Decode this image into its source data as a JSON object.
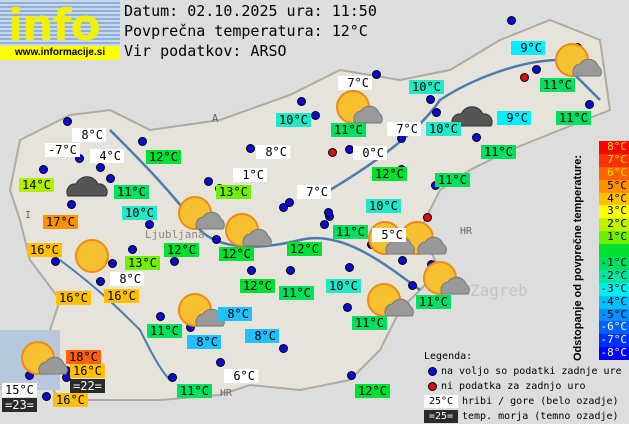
{
  "logo": {
    "word": "info",
    "url": "www.informacije.si"
  },
  "header": {
    "date_line": "Datum: 02.10.2025 ura: 11:50",
    "avg_temp_line": "Povprečna temperatura: 12°C",
    "source_line": "Vir podatkov: ARSO"
  },
  "map_labels": {
    "austria": "A",
    "croatia_1": "HR",
    "croatia_2": "HR",
    "italy": "I",
    "ljubljana": "Ljubljana",
    "zagreb": "Zagreb"
  },
  "colors": {
    "station_available": "#0a0ad8",
    "station_missing": "#d81010",
    "river": "#4a7cb0"
  },
  "stations": [
    {
      "t": "9°C",
      "bg": "#00f0ff"
    },
    {
      "t": "7°C",
      "bg": "#ffffff"
    },
    {
      "t": "10°C",
      "bg": "#20e8c8"
    },
    {
      "t": "11°C",
      "bg": "#00e060"
    },
    {
      "t": "10°C",
      "bg": "#20e8c8"
    },
    {
      "t": "11°C",
      "bg": "#00e060"
    },
    {
      "t": "7°C",
      "bg": "#ffffff"
    },
    {
      "t": "10°C",
      "bg": "#20e8c8"
    },
    {
      "t": "9°C",
      "bg": "#00f0ff"
    },
    {
      "t": "11°C",
      "bg": "#00e060"
    },
    {
      "t": "8°C",
      "bg": "#ffffff"
    },
    {
      "t": "-7°C",
      "bg": "#ffffff"
    },
    {
      "t": "4°C",
      "bg": "#ffffff"
    },
    {
      "t": "12°C",
      "bg": "#00e030"
    },
    {
      "t": "8°C",
      "bg": "#ffffff"
    },
    {
      "t": "0°C",
      "bg": "#ffffff"
    },
    {
      "t": "11°C",
      "bg": "#00e060"
    },
    {
      "t": "12°C",
      "bg": "#00e030"
    },
    {
      "t": "14°C",
      "bg": "#b0f000"
    },
    {
      "t": "1°C",
      "bg": "#ffffff"
    },
    {
      "t": "11°C",
      "bg": "#00e060"
    },
    {
      "t": "13°C",
      "bg": "#70f000"
    },
    {
      "t": "7°C",
      "bg": "#ffffff"
    },
    {
      "t": "11°C",
      "bg": "#00e060"
    },
    {
      "t": "10°C",
      "bg": "#20e8c8"
    },
    {
      "t": "10°C",
      "bg": "#20e8c8"
    },
    {
      "t": "17°C",
      "bg": "#ff9000"
    },
    {
      "t": "11°C",
      "bg": "#00e060"
    },
    {
      "t": "5°C",
      "bg": "#ffffff"
    },
    {
      "t": "16°C",
      "bg": "#ffc000"
    },
    {
      "t": "12°C",
      "bg": "#00e030"
    },
    {
      "t": "12°C",
      "bg": "#00e030"
    },
    {
      "t": "12°C",
      "bg": "#00e030"
    },
    {
      "t": "13°C",
      "bg": "#70f000"
    },
    {
      "t": "8°C",
      "bg": "#ffffff"
    },
    {
      "t": "16°C",
      "bg": "#ffc000"
    },
    {
      "t": "16°C",
      "bg": "#ffc000"
    },
    {
      "t": "12°C",
      "bg": "#00e030"
    },
    {
      "t": "11°C",
      "bg": "#00e060"
    },
    {
      "t": "10°C",
      "bg": "#20e8c8"
    },
    {
      "t": "11°C",
      "bg": "#00e060"
    },
    {
      "t": "8°C",
      "bg": "#20c0ff"
    },
    {
      "t": "11°C",
      "bg": "#00e060"
    },
    {
      "t": "11°C",
      "bg": "#00e060"
    },
    {
      "t": "8°C",
      "bg": "#20c0ff"
    },
    {
      "t": "8°C",
      "bg": "#20c0ff"
    },
    {
      "t": "18°C",
      "bg": "#ff6010"
    },
    {
      "t": "16°C",
      "bg": "#ffc000"
    },
    {
      "t": "=22=",
      "bg": "#2a2a2a"
    },
    {
      "t": "15°C",
      "bg": "#ffffff"
    },
    {
      "t": "16°C",
      "bg": "#ffc000"
    },
    {
      "t": "=23=",
      "bg": "#2a2a2a"
    },
    {
      "t": "6°C",
      "bg": "#ffffff"
    },
    {
      "t": "11°C",
      "bg": "#00e060"
    },
    {
      "t": "12°C",
      "bg": "#00e030"
    }
  ],
  "weather_icons": [
    "sun-cloud",
    "sun-cloud",
    "dark-cloud",
    "dark-cloud",
    "sun-cloud",
    "sun-cloud",
    "sun",
    "sun-cloud",
    "sun-cloud",
    "sun-cloud",
    "sun-cloud",
    "sun-cloud",
    "sun-cloud"
  ],
  "scale": {
    "title": "Odstopanje od povprečne temperature:",
    "steps": [
      {
        "t": "8°C",
        "bg": "#ff0000",
        "fg": "#ffe000"
      },
      {
        "t": "7°C",
        "bg": "#ff3000",
        "fg": "#ffe000"
      },
      {
        "t": "6°C",
        "bg": "#ff6000",
        "fg": "#ffe000"
      },
      {
        "t": "5°C",
        "bg": "#ff9000",
        "fg": "#000"
      },
      {
        "t": "4°C",
        "bg": "#ffc000",
        "fg": "#000"
      },
      {
        "t": "3°C",
        "bg": "#ffff00",
        "fg": "#000"
      },
      {
        "t": "2°C",
        "bg": "#c0f000",
        "fg": "#000"
      },
      {
        "t": "1°C",
        "bg": "#70f000",
        "fg": "#000"
      },
      {
        "t": "",
        "bg": "#00e030",
        "fg": "#000"
      },
      {
        "t": "-1°C",
        "bg": "#00e060",
        "fg": "#000"
      },
      {
        "t": "-2°C",
        "bg": "#00e8a0",
        "fg": "#000"
      },
      {
        "t": "-3°C",
        "bg": "#00f0f0",
        "fg": "#000"
      },
      {
        "t": "-4°C",
        "bg": "#00c0ff",
        "fg": "#000"
      },
      {
        "t": "-5°C",
        "bg": "#0090ff",
        "fg": "#000"
      },
      {
        "t": "-6°C",
        "bg": "#0060ff",
        "fg": "#fff"
      },
      {
        "t": "-7°C",
        "bg": "#0030ff",
        "fg": "#fff"
      },
      {
        "t": "-8°C",
        "bg": "#0000ff",
        "fg": "#fff"
      }
    ]
  },
  "legend": {
    "title": "Legenda:",
    "available": "na voljo so podatki zadnje ure",
    "missing": "ni podatka za zadnjo uro",
    "mountain_sample": "25°C",
    "mountain_text": "hribi / gore (belo ozadje)",
    "sea_sample": "=25=",
    "sea_text": "temp. morja (temno ozadje)"
  }
}
